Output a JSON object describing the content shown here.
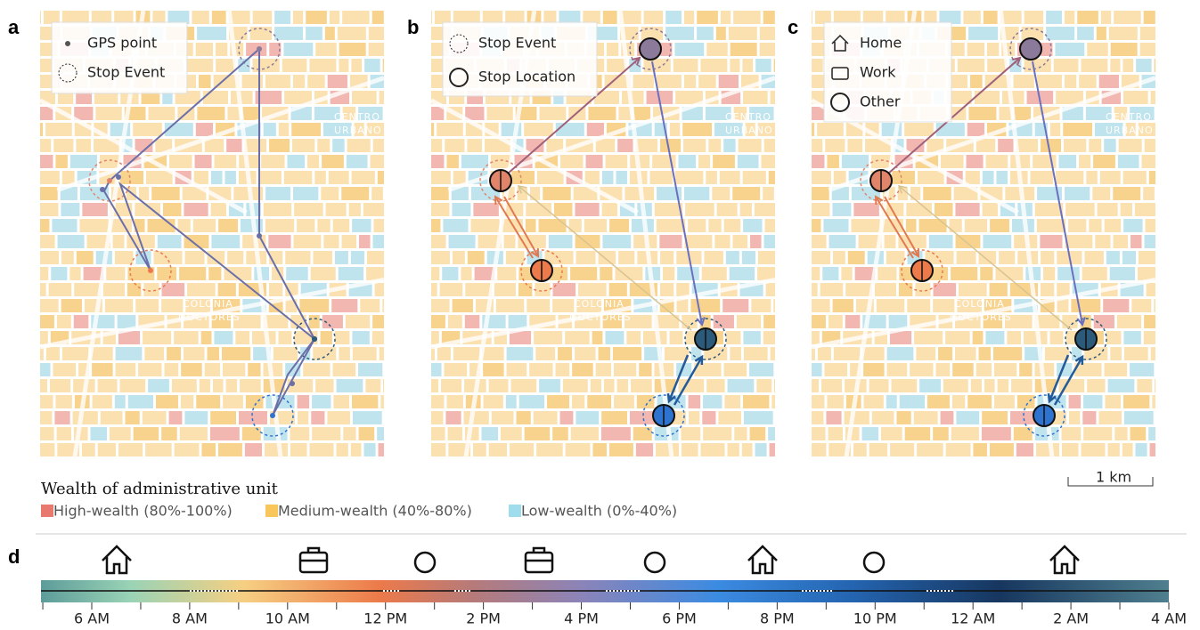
{
  "panels": [
    {
      "label": "a",
      "legend": [
        "GPS point",
        "Stop Event"
      ]
    },
    {
      "label": "b",
      "legend": [
        "Stop Event",
        "Stop Location"
      ]
    },
    {
      "label": "c",
      "legend": [
        "Home",
        "Work",
        "Other"
      ]
    }
  ],
  "map_labels": [
    "CENTRO",
    "URBANO",
    "COLONIA",
    "DOCTORES"
  ],
  "scale_bar": "1 km",
  "wealth_legend": {
    "title": "Wealth of administrative unit",
    "items": [
      "High-wealth (80%-100%)",
      "Medium-wealth (40%-80%)",
      "Low-wealth (0%-40%)"
    ]
  },
  "timeline": {
    "label": "d",
    "ticks": [
      "6 AM",
      "8 AM",
      "10 AM",
      "12 PM",
      "2 PM",
      "4 PM",
      "6 PM",
      "8 PM",
      "10 PM",
      "12 AM",
      "2 AM",
      "4 AM"
    ]
  }
}
